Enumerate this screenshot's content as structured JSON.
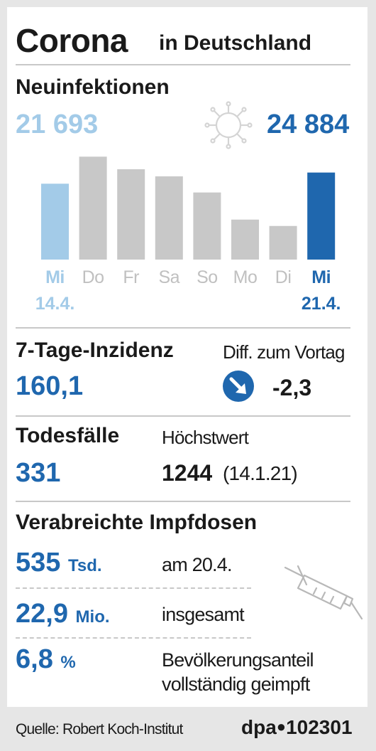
{
  "header": {
    "title": "Corona",
    "subtitle": "in Deutschland"
  },
  "neuinfektionen": {
    "label": "Neuinfektionen",
    "start_value": "21 693",
    "end_value": "24 884"
  },
  "chart_data": {
    "type": "bar",
    "title": "Neuinfektionen",
    "categories": [
      "Mi",
      "Do",
      "Fr",
      "Sa",
      "So",
      "Mo",
      "Di",
      "Mi"
    ],
    "date_labels": [
      "14.4.",
      "",
      "",
      "",
      "",
      "",
      "",
      "21.4."
    ],
    "values": [
      21693,
      29426,
      25831,
      23804,
      19185,
      11437,
      9609,
      24884
    ],
    "ylim": [
      0,
      30500
    ],
    "colors": [
      "#a3cbe8",
      "#c8c8c8",
      "#c8c8c8",
      "#c8c8c8",
      "#c8c8c8",
      "#c8c8c8",
      "#c8c8c8",
      "#1f67ae"
    ],
    "label_colors": [
      "#a3cbe8",
      "#c0c0c0",
      "#c0c0c0",
      "#c0c0c0",
      "#c0c0c0",
      "#c0c0c0",
      "#c0c0c0",
      "#1f67ae"
    ],
    "grid": false
  },
  "inzidenz": {
    "label": "7-Tage-Inzidenz",
    "value": "160,1",
    "diff_label": "Diff. zum Vortag",
    "diff_value": "-2,3"
  },
  "todesfaelle": {
    "label": "Todesfälle",
    "value": "331",
    "max_label": "Höchstwert",
    "max_value": "1244",
    "max_date": "(14.1.21)"
  },
  "impfdosen": {
    "label": "Verabreichte Impfdosen",
    "rows": [
      {
        "value": "535",
        "unit": "Tsd.",
        "desc": "am 20.4."
      },
      {
        "value": "22,9",
        "unit": "Mio.",
        "desc": "insgesamt"
      },
      {
        "value": "6,8",
        "unit": "%",
        "desc_line1": "Bevölkerungsanteil",
        "desc_line2": "vollständig geimpft"
      }
    ]
  },
  "footer": {
    "source": "Quelle: Robert Koch-Institut",
    "brand": "dpa",
    "number": "102301"
  },
  "colors": {
    "blue": "#1f67ae",
    "light_blue": "#a3cbe8",
    "grey_bar": "#c8c8c8"
  }
}
